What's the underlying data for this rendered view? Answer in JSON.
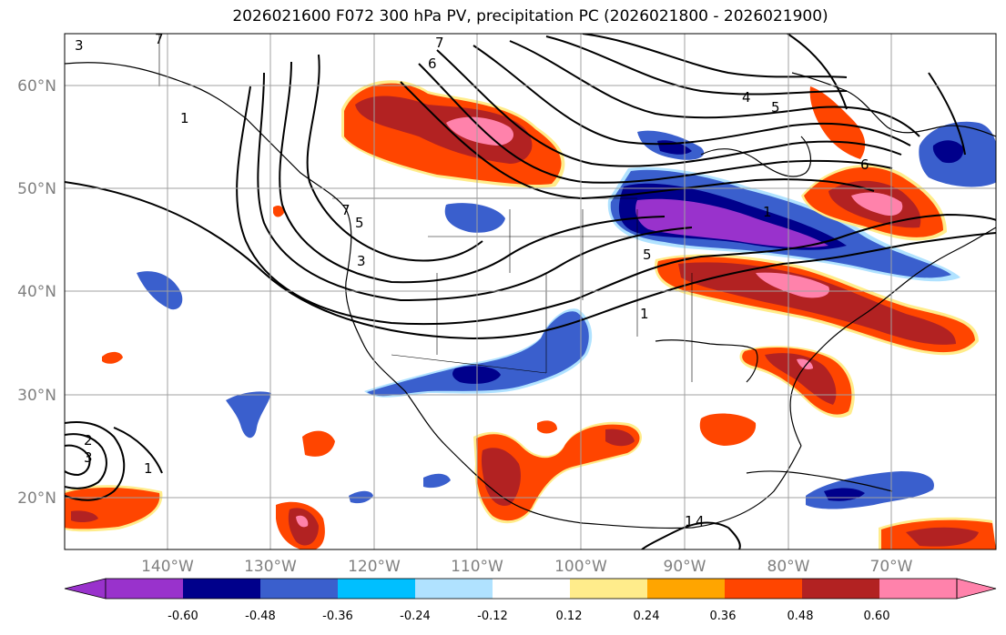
{
  "title": "2026021600 F072 300 hPa PV, precipitation PC (2026021800 - 2026021900)",
  "lat_labels": [
    "60°N",
    "50°N",
    "40°N",
    "30°N",
    "20°N"
  ],
  "lon_labels": [
    "140°W",
    "130°W",
    "120°W",
    "110°W",
    "100°W",
    "90°W",
    "80°W",
    "70°W"
  ],
  "colorbar": {
    "ticks": [
      "-0.60",
      "-0.48",
      "-0.36",
      "-0.24",
      "-0.12",
      "0.12",
      "0.24",
      "0.36",
      "0.48",
      "0.60"
    ],
    "colors": [
      "#9932CC",
      "#00008B",
      "#3A5FCD",
      "#00BFFF",
      "#B0E2FF",
      "#FFFFFF",
      "#FFEC8B",
      "#FFA500",
      "#FF4500",
      "#B22222",
      "#FF82AB"
    ]
  },
  "pv_labels": [
    "3",
    "7",
    "1",
    "6",
    "4",
    "5",
    "6",
    "7",
    "1",
    "7",
    "5",
    "5",
    "3",
    "1",
    "2",
    "3",
    "1",
    "1",
    "4"
  ],
  "map": {
    "extent_lon": [
      -150,
      -59
    ],
    "extent_lat": [
      15,
      65
    ],
    "field_1": "300 hPa PV",
    "field_2": "precipitation PC"
  }
}
